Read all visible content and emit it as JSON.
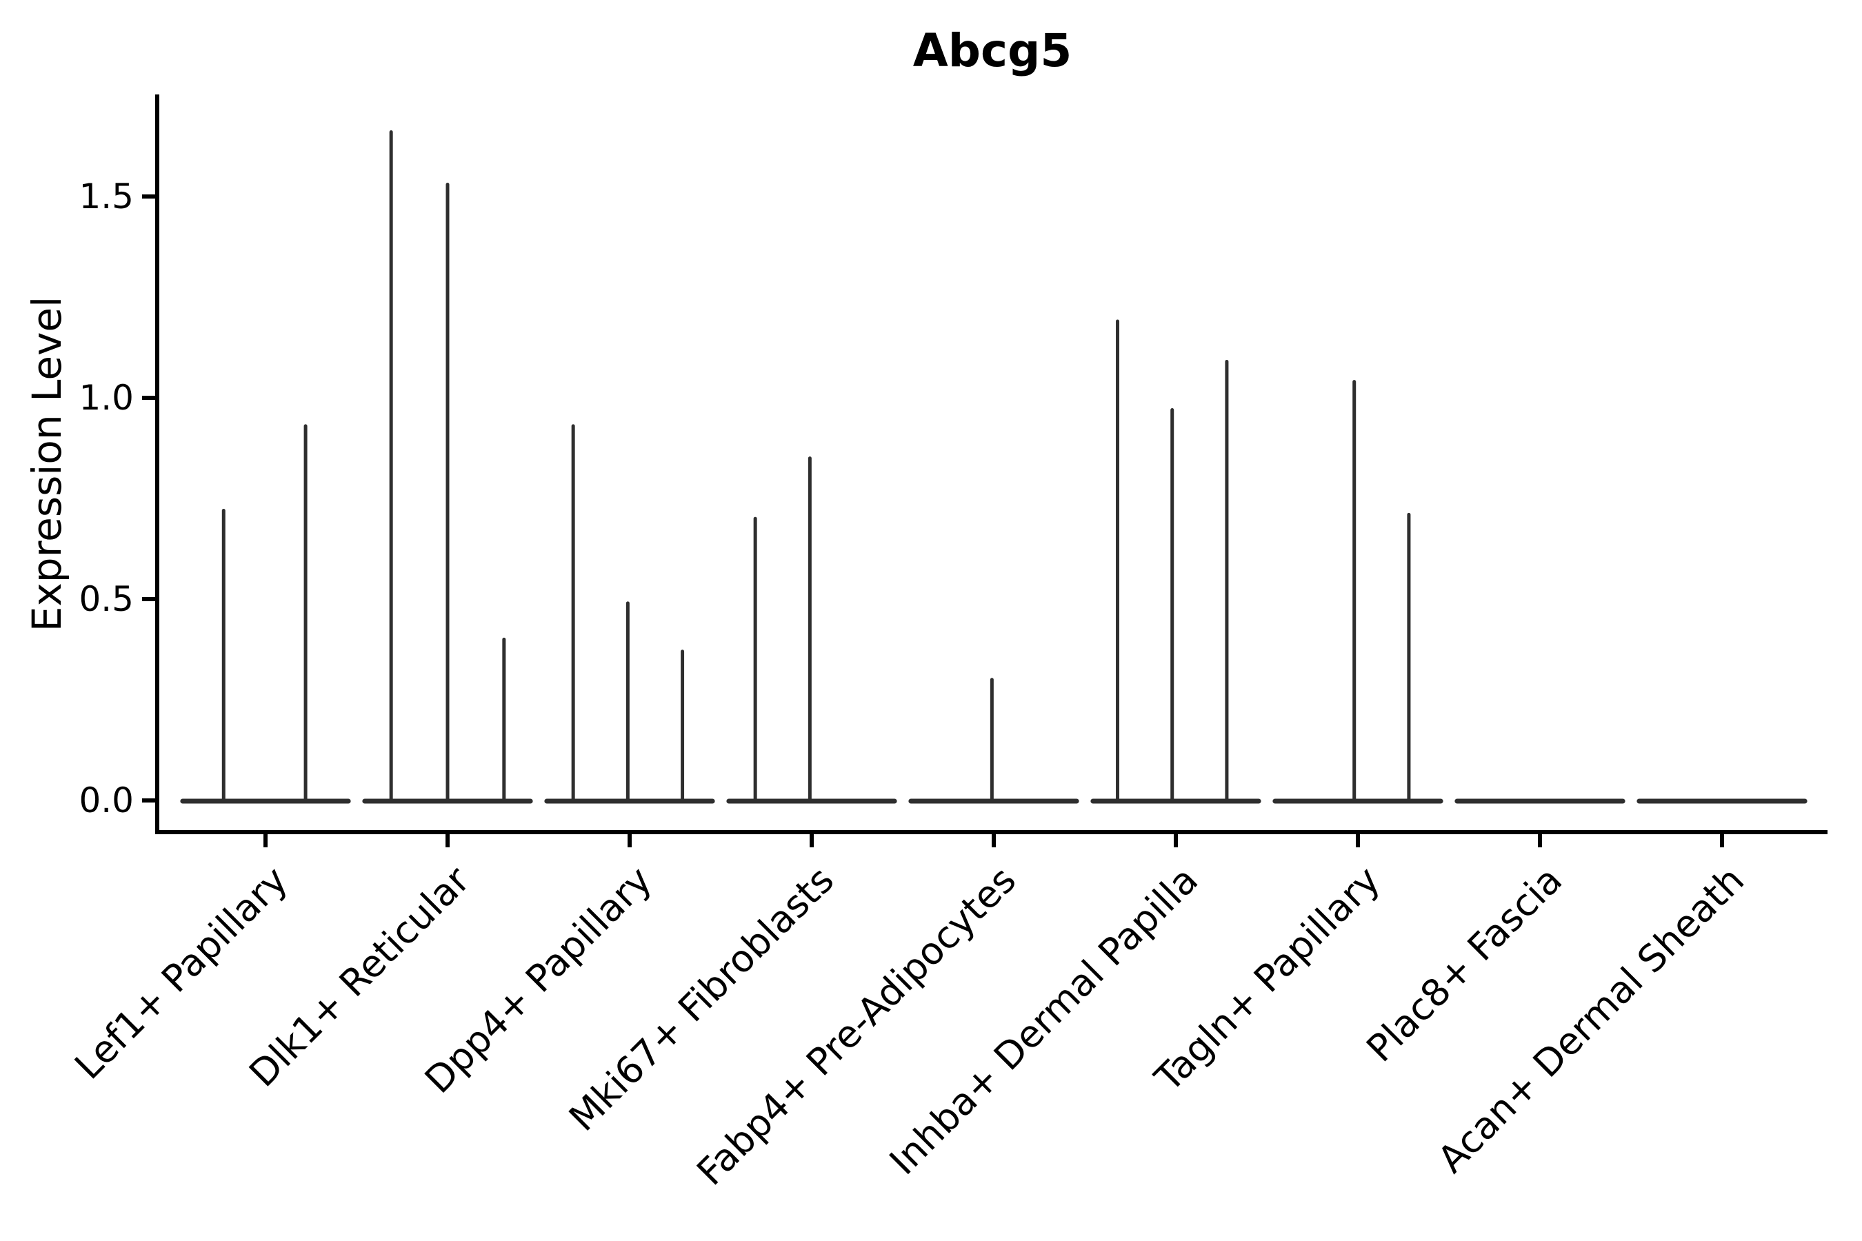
{
  "title": "Abcg5",
  "colors": {
    "violin_line": "#2e2e2e",
    "axis": "#000000",
    "text": "#000000",
    "background": "#ffffff"
  },
  "chart_data": {
    "type": "violin",
    "title": "Abcg5",
    "ylabel": "Expression Level",
    "xlabel": "",
    "ylim": [
      -0.08,
      1.75
    ],
    "yticks": [
      0.0,
      0.5,
      1.0,
      1.5
    ],
    "ytick_labels": [
      "0.0",
      "0.5",
      "1.0",
      "1.5"
    ],
    "grid": false,
    "legend": "none",
    "categories": [
      "Lef1+ Papillary",
      "Dlk1+ Reticular",
      "Dpp4+ Papillary",
      "Mki67+ Fibroblasts",
      "Fabp4+ Pre-Adipocytes",
      "Inhba+ Dermal Papilla",
      "Tagln+ Papillary",
      "Plac8+ Fascia",
      "Acan+ Dermal Sheath"
    ],
    "violins": [
      {
        "category": "Lef1+ Papillary",
        "baseline_halfwidth": 0.455,
        "spikes": [
          {
            "offset": -0.23,
            "max": 0.72
          },
          {
            "offset": 0.22,
            "max": 0.93
          }
        ]
      },
      {
        "category": "Dlk1+ Reticular",
        "baseline_halfwidth": 0.455,
        "spikes": [
          {
            "offset": -0.31,
            "max": 1.66
          },
          {
            "offset": 0.0,
            "max": 1.53
          },
          {
            "offset": 0.31,
            "max": 0.4
          }
        ]
      },
      {
        "category": "Dpp4+ Papillary",
        "baseline_halfwidth": 0.455,
        "spikes": [
          {
            "offset": -0.31,
            "max": 0.93
          },
          {
            "offset": -0.01,
            "max": 0.49
          },
          {
            "offset": 0.29,
            "max": 0.37
          }
        ]
      },
      {
        "category": "Mki67+ Fibroblasts",
        "baseline_halfwidth": 0.455,
        "spikes": [
          {
            "offset": -0.31,
            "max": 0.7
          },
          {
            "offset": -0.01,
            "max": 0.85
          }
        ]
      },
      {
        "category": "Fabp4+ Pre-Adipocytes",
        "baseline_halfwidth": 0.455,
        "spikes": [
          {
            "offset": -0.01,
            "max": 0.3
          }
        ]
      },
      {
        "category": "Inhba+ Dermal Papilla",
        "baseline_halfwidth": 0.455,
        "spikes": [
          {
            "offset": -0.32,
            "max": 1.19
          },
          {
            "offset": -0.02,
            "max": 0.97
          },
          {
            "offset": 0.28,
            "max": 1.09
          }
        ]
      },
      {
        "category": "Tagln+ Papillary",
        "baseline_halfwidth": 0.455,
        "spikes": [
          {
            "offset": -0.02,
            "max": 1.04
          },
          {
            "offset": 0.28,
            "max": 0.71
          }
        ]
      },
      {
        "category": "Plac8+ Fascia",
        "baseline_halfwidth": 0.455,
        "spikes": []
      },
      {
        "category": "Acan+ Dermal Sheath",
        "baseline_halfwidth": 0.455,
        "spikes": []
      }
    ]
  }
}
